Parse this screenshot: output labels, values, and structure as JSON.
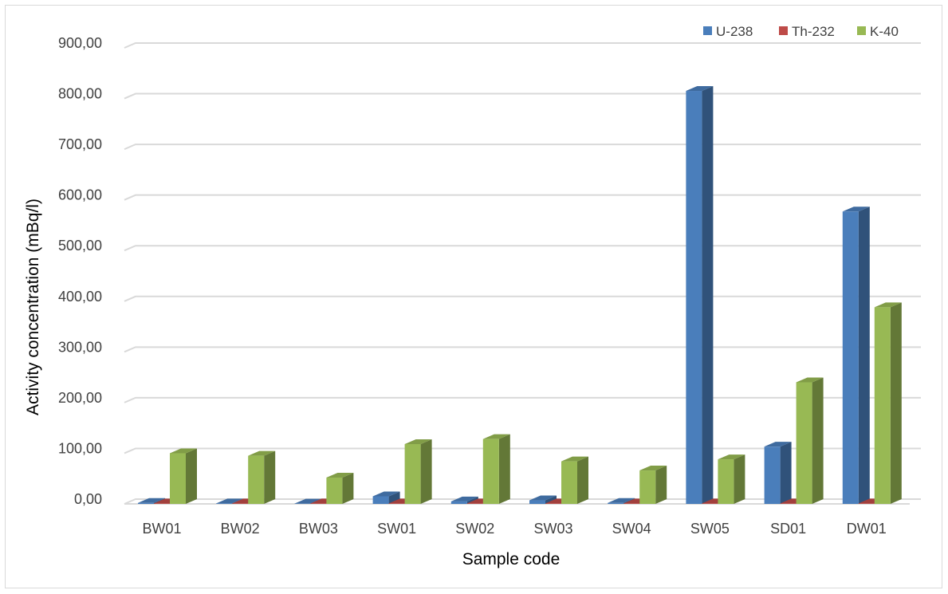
{
  "chart_data": {
    "type": "bar",
    "title": "",
    "xlabel": "Sample code",
    "ylabel": "Activity concentration (mBq/l)",
    "categories": [
      "BW01",
      "BW02",
      "BW03",
      "SW01",
      "SW02",
      "SW03",
      "SW04",
      "SW05",
      "SD01",
      "DW01"
    ],
    "y_ticks": [
      "0,00",
      "100,00",
      "200,00",
      "300,00",
      "400,00",
      "500,00",
      "600,00",
      "700,00",
      "800,00",
      "900,00"
    ],
    "ylim": [
      0,
      900
    ],
    "grid": true,
    "legend_position": "top-right",
    "series": [
      {
        "name": "U-238",
        "color": "#4a7ebb",
        "values": [
          2,
          1,
          0.5,
          15,
          5,
          7,
          2,
          815,
          113,
          577
        ]
      },
      {
        "name": "Th-232",
        "color": "#be4b48",
        "values": [
          1,
          1,
          1,
          1,
          1,
          1,
          1,
          1,
          1,
          1
        ]
      },
      {
        "name": "K-40",
        "color": "#98b954",
        "values": [
          100,
          95,
          52,
          118,
          128,
          84,
          66,
          88,
          240,
          388
        ]
      }
    ]
  }
}
